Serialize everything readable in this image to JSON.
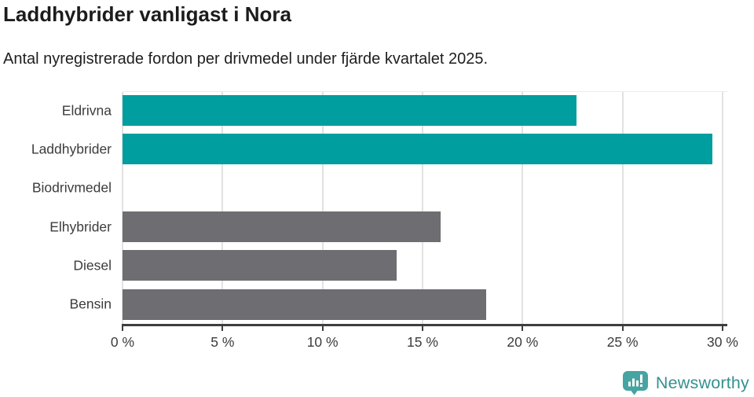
{
  "chart_data": {
    "type": "bar",
    "orientation": "horizontal",
    "title": "Laddhybrider vanligast i Nora",
    "subtitle": "Antal nyregistrerade fordon per drivmedel under fjärde kvartalet 2025.",
    "categories": [
      "Eldrivna",
      "Laddhybrider",
      "Biodrivmedel",
      "Elhybrider",
      "Diesel",
      "Bensin"
    ],
    "values": [
      22.7,
      29.5,
      0,
      15.9,
      13.7,
      18.2
    ],
    "unit": "%",
    "xlabel": "",
    "ylabel": "",
    "xlim": [
      0,
      30
    ],
    "x_ticks": [
      0,
      5,
      10,
      15,
      20,
      25,
      30
    ],
    "x_tick_labels": [
      "0 %",
      "5 %",
      "10 %",
      "15 %",
      "20 %",
      "25 %",
      "30 %"
    ],
    "bar_colors": [
      "#009E9E",
      "#009E9E",
      "#6D6D72",
      "#6D6D72",
      "#6D6D72",
      "#6D6D72"
    ],
    "colors": {
      "highlight": "#009E9E",
      "default": "#6D6D72",
      "gridline": "#E2E2E2",
      "axis": "#3E3E3E",
      "label_text": "#3C3C3C"
    },
    "grid": true,
    "legend": false
  },
  "branding": {
    "logo_text": "Newsworthy",
    "logo_text_color": "#35918F",
    "logo_icon": "newsworthy-speech-bubble-bar-chart-icon",
    "logo_icon_color": "#46A4A2",
    "logo_bar_color": "#FFFFFF"
  }
}
